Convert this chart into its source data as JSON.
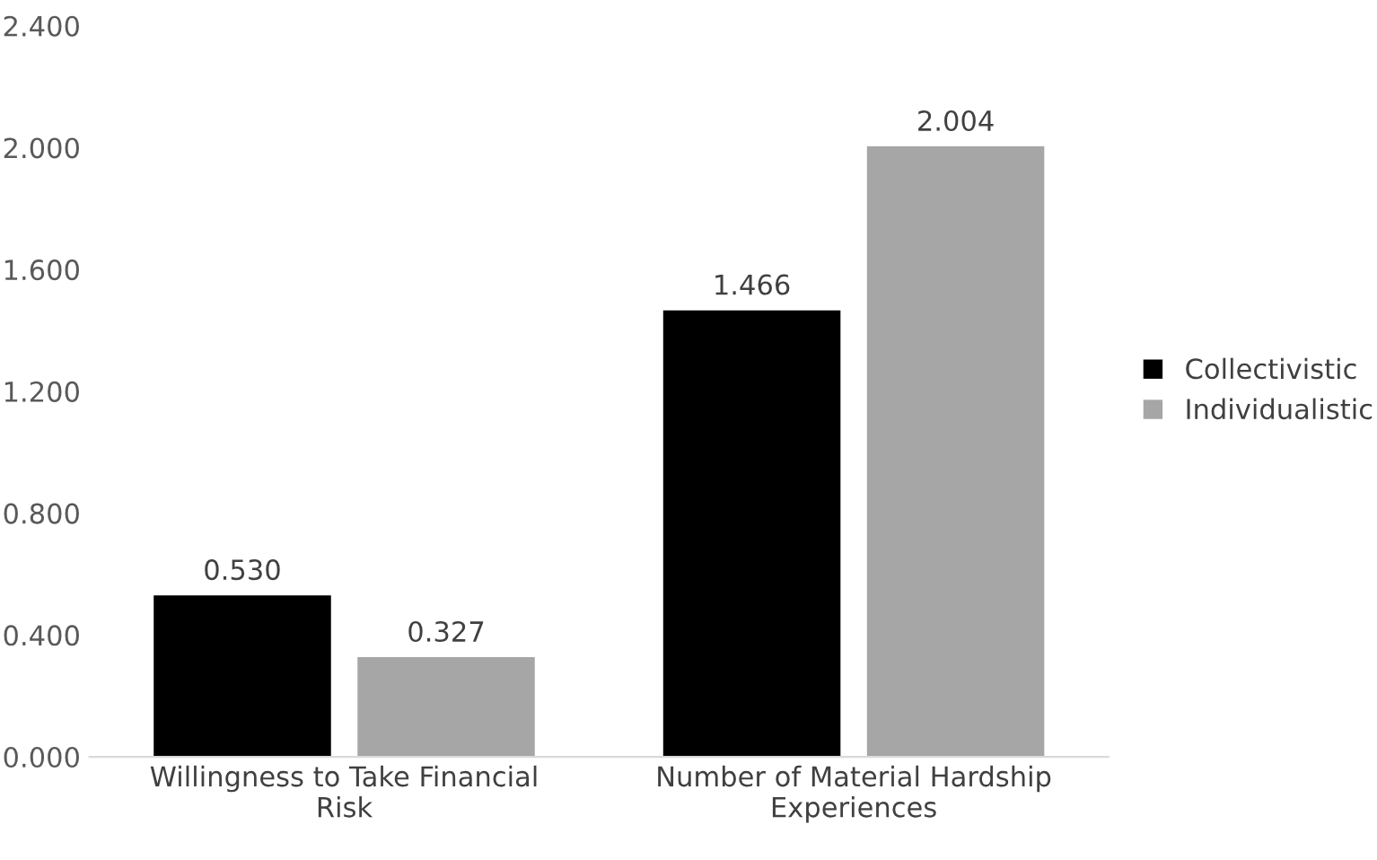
{
  "chart_data": {
    "type": "bar",
    "categories": [
      "Willingness to Take Financial Risk",
      "Number of Material Hardship Experiences"
    ],
    "series": [
      {
        "name": "Collectivistic",
        "color": "#000000",
        "values": [
          0.53,
          1.466
        ],
        "value_labels": [
          "0.530",
          "1.466"
        ]
      },
      {
        "name": "Individualistic",
        "color": "#a6a6a6",
        "values": [
          0.327,
          2.004
        ],
        "value_labels": [
          "0.327",
          "2.004"
        ]
      }
    ],
    "ylim": [
      0,
      2.4
    ],
    "yticks": [
      {
        "value": 0,
        "label": "0.000"
      },
      {
        "value": 0.4,
        "label": "0.400"
      },
      {
        "value": 0.8,
        "label": "0.800"
      },
      {
        "value": 1.2,
        "label": "1.200"
      },
      {
        "value": 1.6,
        "label": "1.600"
      },
      {
        "value": 2.0,
        "label": "2.000"
      },
      {
        "value": 2.4,
        "label": "2.400"
      }
    ],
    "grid": false,
    "legend": "right"
  }
}
